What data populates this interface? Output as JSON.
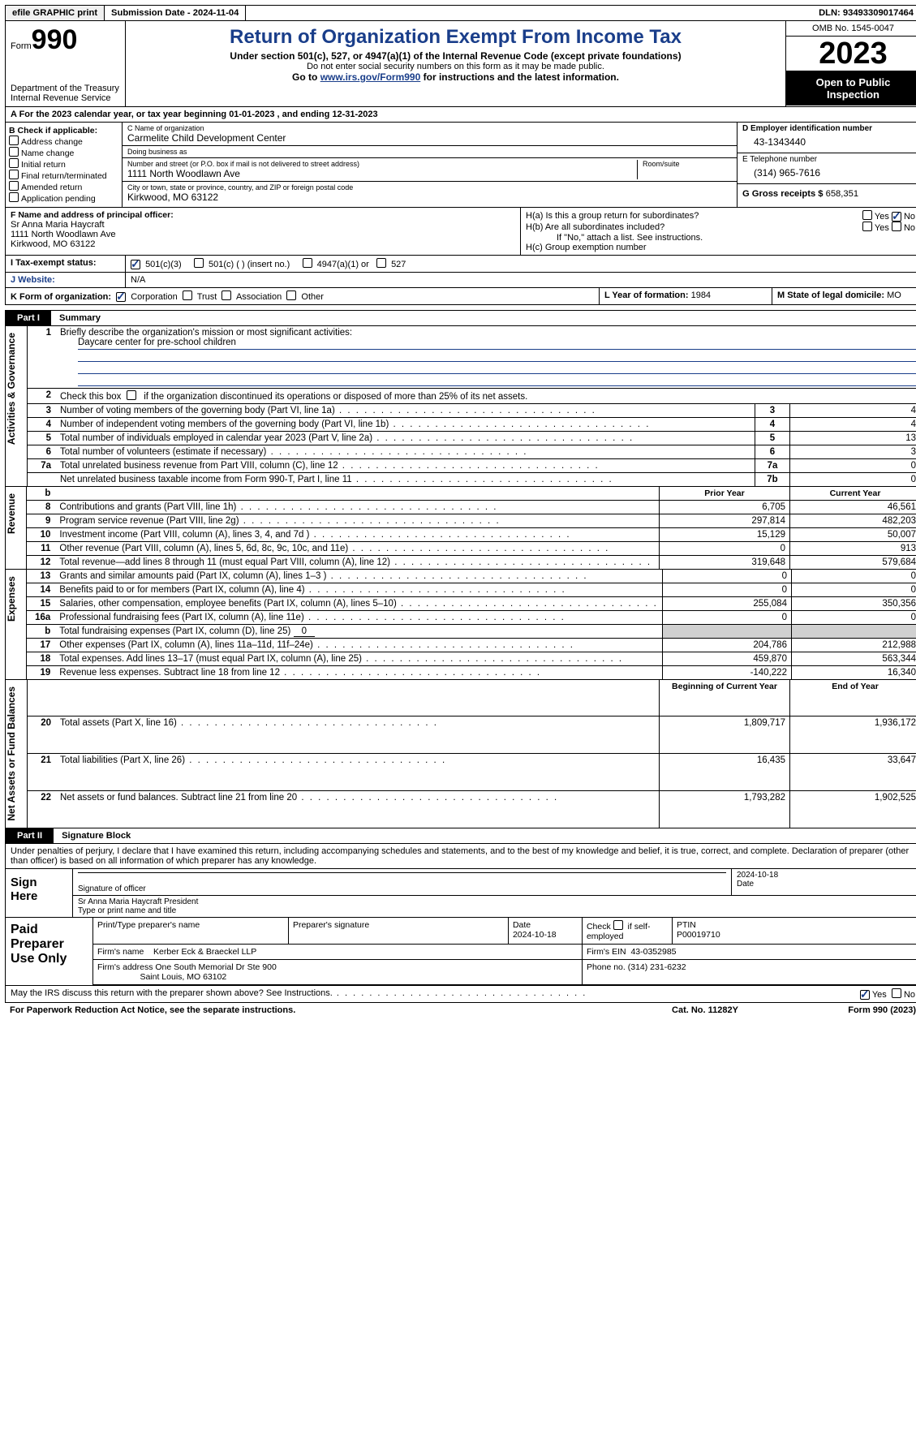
{
  "topbar": {
    "efile": "efile GRAPHIC print",
    "submission": "Submission Date - 2024-11-04",
    "dln": "DLN: 93493309017464"
  },
  "header": {
    "form_label": "Form",
    "form_number": "990",
    "dept": "Department of the Treasury Internal Revenue Service",
    "title": "Return of Organization Exempt From Income Tax",
    "sub1": "Under section 501(c), 527, or 4947(a)(1) of the Internal Revenue Code (except private foundations)",
    "sub2": "Do not enter social security numbers on this form as it may be made public.",
    "sub3_a": "Go to ",
    "sub3_link": "www.irs.gov/Form990",
    "sub3_b": " for instructions and the latest information.",
    "omb": "OMB No. 1545-0047",
    "year": "2023",
    "open": "Open to Public Inspection"
  },
  "A": {
    "line": "A For the 2023 calendar year, or tax year beginning 01-01-2023    , and ending 12-31-2023"
  },
  "B": {
    "title": "B Check if applicable:",
    "opts": [
      "Address change",
      "Name change",
      "Initial return",
      "Final return/terminated",
      "Amended return",
      "Application pending"
    ]
  },
  "C": {
    "name_lbl": "C Name of organization",
    "name": "Carmelite Child Development Center",
    "dba_lbl": "Doing business as",
    "dba": "",
    "addr_lbl": "Number and street (or P.O. box if mail is not delivered to street address)",
    "room_lbl": "Room/suite",
    "addr": "1111 North Woodlawn Ave",
    "city_lbl": "City or town, state or province, country, and ZIP or foreign postal code",
    "city": "Kirkwood, MO   63122"
  },
  "D": {
    "lbl": "D Employer identification number",
    "val": "43-1343440"
  },
  "E": {
    "lbl": "E Telephone number",
    "val": "(314) 965-7616"
  },
  "G": {
    "lbl": "G Gross receipts $",
    "val": "658,351"
  },
  "F": {
    "lbl": "F  Name and address of principal officer:",
    "name": "Sr Anna Maria Haycraft",
    "addr1": "1111 North Woodlawn Ave",
    "addr2": "Kirkwood, MO   63122"
  },
  "H": {
    "a": "H(a)  Is this a group return for subordinates?",
    "b": "H(b)  Are all subordinates included?",
    "b2": "If \"No,\" attach a list. See instructions.",
    "c": "H(c)  Group exemption number"
  },
  "I": {
    "lbl": "I   Tax-exempt status:",
    "o1": "501(c)(3)",
    "o2": "501(c) (  ) (insert no.)",
    "o3": "4947(a)(1) or",
    "o4": "527"
  },
  "J": {
    "lbl": "J   Website:",
    "val": "N/A"
  },
  "K": {
    "lbl": "K Form of organization:",
    "o1": "Corporation",
    "o2": "Trust",
    "o3": "Association",
    "o4": "Other"
  },
  "L": {
    "lbl": "L Year of formation:",
    "val": "1984"
  },
  "M": {
    "lbl": "M State of legal domicile:",
    "val": "MO"
  },
  "parts": {
    "p1": "Part I",
    "p1t": "Summary",
    "p2": "Part II",
    "p2t": "Signature Block"
  },
  "vlabels": {
    "ag": "Activities & Governance",
    "rev": "Revenue",
    "exp": "Expenses",
    "net": "Net Assets or Fund Balances"
  },
  "summary": {
    "l1": "Briefly describe the organization's mission or most significant activities:",
    "l1v": "Daycare center for pre-school children",
    "l2": "Check this box          if the organization discontinued its operations or disposed of more than 25% of its net assets.",
    "l3": {
      "t": "Number of voting members of the governing body (Part VI, line 1a)",
      "n": "3",
      "v": "4"
    },
    "l4": {
      "t": "Number of independent voting members of the governing body (Part VI, line 1b)",
      "n": "4",
      "v": "4"
    },
    "l5": {
      "t": "Total number of individuals employed in calendar year 2023 (Part V, line 2a)",
      "n": "5",
      "v": "13"
    },
    "l6": {
      "t": "Total number of volunteers (estimate if necessary)",
      "n": "6",
      "v": "3"
    },
    "l7a": {
      "t": "Total unrelated business revenue from Part VIII, column (C), line 12",
      "n": "7a",
      "v": "0"
    },
    "l7b": {
      "t": "Net unrelated business taxable income from Form 990-T, Part I, line 11",
      "n": "7b",
      "v": "0"
    },
    "hdr_prior": "Prior Year",
    "hdr_curr": "Current Year",
    "rows_rev": [
      {
        "n": "8",
        "t": "Contributions and grants (Part VIII, line 1h)",
        "p": "6,705",
        "c": "46,561"
      },
      {
        "n": "9",
        "t": "Program service revenue (Part VIII, line 2g)",
        "p": "297,814",
        "c": "482,203"
      },
      {
        "n": "10",
        "t": "Investment income (Part VIII, column (A), lines 3, 4, and 7d )",
        "p": "15,129",
        "c": "50,007"
      },
      {
        "n": "11",
        "t": "Other revenue (Part VIII, column (A), lines 5, 6d, 8c, 9c, 10c, and 11e)",
        "p": "0",
        "c": "913"
      },
      {
        "n": "12",
        "t": "Total revenue—add lines 8 through 11 (must equal Part VIII, column (A), line 12)",
        "p": "319,648",
        "c": "579,684"
      }
    ],
    "rows_exp": [
      {
        "n": "13",
        "t": "Grants and similar amounts paid (Part IX, column (A), lines 1–3 )",
        "p": "0",
        "c": "0"
      },
      {
        "n": "14",
        "t": "Benefits paid to or for members (Part IX, column (A), line 4)",
        "p": "0",
        "c": "0"
      },
      {
        "n": "15",
        "t": "Salaries, other compensation, employee benefits (Part IX, column (A), lines 5–10)",
        "p": "255,084",
        "c": "350,356"
      },
      {
        "n": "16a",
        "t": "Professional fundraising fees (Part IX, column (A), line 11e)",
        "p": "0",
        "c": "0"
      }
    ],
    "l16b": {
      "n": "b",
      "t": "Total fundraising expenses (Part IX, column (D), line 25)",
      "v": "0"
    },
    "rows_exp2": [
      {
        "n": "17",
        "t": "Other expenses (Part IX, column (A), lines 11a–11d, 11f–24e)",
        "p": "204,786",
        "c": "212,988"
      },
      {
        "n": "18",
        "t": "Total expenses. Add lines 13–17 (must equal Part IX, column (A), line 25)",
        "p": "459,870",
        "c": "563,344"
      },
      {
        "n": "19",
        "t": "Revenue less expenses. Subtract line 18 from line 12",
        "p": "-140,222",
        "c": "16,340"
      }
    ],
    "hdr_boy": "Beginning of Current Year",
    "hdr_eoy": "End of Year",
    "rows_net": [
      {
        "n": "20",
        "t": "Total assets (Part X, line 16)",
        "p": "1,809,717",
        "c": "1,936,172"
      },
      {
        "n": "21",
        "t": "Total liabilities (Part X, line 26)",
        "p": "16,435",
        "c": "33,647"
      },
      {
        "n": "22",
        "t": "Net assets or fund balances. Subtract line 21 from line 20",
        "p": "1,793,282",
        "c": "1,902,525"
      }
    ]
  },
  "penalty": "Under penalties of perjury, I declare that I have examined this return, including accompanying schedules and statements, and to the best of my knowledge and belief, it is true, correct, and complete. Declaration of preparer (other than officer) is based on all information of which preparer has any knowledge.",
  "sign": {
    "left": "Sign Here",
    "sig_lbl": "Signature of officer",
    "date_lbl": "Date",
    "date": "2024-10-18",
    "name": "Sr Anna Maria Haycraft President",
    "name_lbl": "Type or print name and title"
  },
  "prep": {
    "left": "Paid Preparer Use Only",
    "c1": "Print/Type preparer's name",
    "c2": "Preparer's signature",
    "c3": "Date",
    "c3v": "2024-10-18",
    "c4": "Check          if self-employed",
    "c5": "PTIN",
    "c5v": "P00019710",
    "firm_lbl": "Firm's name",
    "firm": "Kerber Eck & Braeckel LLP",
    "ein_lbl": "Firm's EIN",
    "ein": "43-0352985",
    "addr_lbl": "Firm's address",
    "addr": "One South Memorial Dr Ste 900",
    "addr2": "Saint Louis, MO   63102",
    "phone_lbl": "Phone no.",
    "phone": "(314) 231-6232"
  },
  "discuss": "May the IRS discuss this return with the preparer shown above? See Instructions.",
  "footer": {
    "pra": "For Paperwork Reduction Act Notice, see the separate instructions.",
    "cat": "Cat. No. 11282Y",
    "form": "Form 990 (2023)"
  },
  "yn": {
    "yes": "Yes",
    "no": "No"
  }
}
